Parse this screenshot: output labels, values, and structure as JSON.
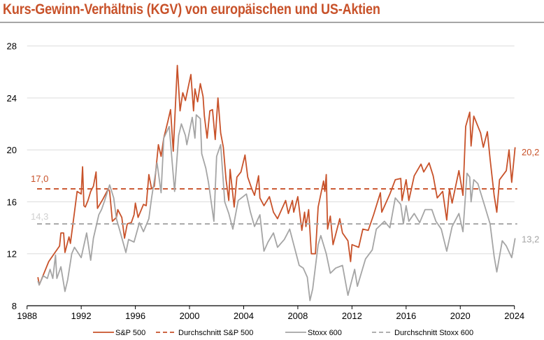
{
  "title": "Kurs-Gewinn-Verhältnis (KGV) von europäischen und US-Aktien",
  "chart_data": {
    "type": "line",
    "title": "Kurs-Gewinn-Verhältnis (KGV) von europäischen und US-Aktien",
    "xlabel": "",
    "ylabel": "",
    "xlim": [
      1988,
      2024
    ],
    "ylim": [
      8,
      28
    ],
    "x_ticks": [
      "1988",
      "1992",
      "1996",
      "2000",
      "2004",
      "2008",
      "2012",
      "2016",
      "2020",
      "2024"
    ],
    "y_ticks": [
      "8",
      "12",
      "16",
      "20",
      "24",
      "28"
    ],
    "grid": "horizontal",
    "legend_position": "bottom",
    "colors": {
      "sp500": "#c8522a",
      "stoxx": "#a5a5a5",
      "stoxx_avg_label": "#d0d0d0"
    },
    "series": [
      {
        "name": "S&P 500",
        "style": "solid",
        "color": "#c8522a",
        "points": [
          [
            1988.8,
            10.2
          ],
          [
            1988.9,
            9.6
          ],
          [
            1989.6,
            11.4
          ],
          [
            1990.0,
            12.0
          ],
          [
            1990.4,
            12.6
          ],
          [
            1990.5,
            13.6
          ],
          [
            1990.7,
            13.6
          ],
          [
            1990.8,
            12.1
          ],
          [
            1991.1,
            13.3
          ],
          [
            1991.2,
            12.8
          ],
          [
            1991.5,
            15.2
          ],
          [
            1991.7,
            16.8
          ],
          [
            1992.0,
            16.6
          ],
          [
            1992.1,
            18.7
          ],
          [
            1992.2,
            15.7
          ],
          [
            1992.3,
            15.6
          ],
          [
            1992.5,
            16.1
          ],
          [
            1992.7,
            16.8
          ],
          [
            1992.9,
            17.2
          ],
          [
            1993.1,
            18.3
          ],
          [
            1993.2,
            15.5
          ],
          [
            1993.6,
            16.2
          ],
          [
            1994.0,
            17.0
          ],
          [
            1994.1,
            16.8
          ],
          [
            1994.3,
            14.5
          ],
          [
            1994.6,
            14.8
          ],
          [
            1994.7,
            15.4
          ],
          [
            1995.0,
            14.8
          ],
          [
            1995.2,
            13.2
          ],
          [
            1995.4,
            14.3
          ],
          [
            1995.7,
            14.4
          ],
          [
            1995.9,
            15.0
          ],
          [
            1996.0,
            15.9
          ],
          [
            1996.2,
            14.8
          ],
          [
            1996.6,
            15.8
          ],
          [
            1996.8,
            15.7
          ],
          [
            1997.0,
            18.1
          ],
          [
            1997.2,
            17.0
          ],
          [
            1997.4,
            17.2
          ],
          [
            1997.7,
            20.4
          ],
          [
            1997.9,
            19.5
          ],
          [
            1998.1,
            20.9
          ],
          [
            1998.4,
            22.2
          ],
          [
            1998.6,
            23.1
          ],
          [
            1998.8,
            19.9
          ],
          [
            1999.1,
            26.5
          ],
          [
            1999.3,
            23.0
          ],
          [
            1999.5,
            24.4
          ],
          [
            1999.7,
            23.8
          ],
          [
            1999.9,
            24.8
          ],
          [
            2000.1,
            25.8
          ],
          [
            2000.3,
            23.0
          ],
          [
            2000.4,
            24.7
          ],
          [
            2000.6,
            23.7
          ],
          [
            2000.8,
            25.1
          ],
          [
            2001.0,
            24.1
          ],
          [
            2001.1,
            22.6
          ],
          [
            2001.3,
            20.9
          ],
          [
            2001.5,
            23.0
          ],
          [
            2001.7,
            23.1
          ],
          [
            2001.9,
            20.8
          ],
          [
            2002.1,
            24.0
          ],
          [
            2002.3,
            21.3
          ],
          [
            2002.5,
            20.2
          ],
          [
            2002.7,
            17.7
          ],
          [
            2002.9,
            16.1
          ],
          [
            2003.0,
            18.5
          ],
          [
            2003.3,
            15.6
          ],
          [
            2003.5,
            17.9
          ],
          [
            2003.8,
            18.3
          ],
          [
            2004.1,
            19.6
          ],
          [
            2004.3,
            17.9
          ],
          [
            2004.6,
            17.0
          ],
          [
            2004.8,
            16.5
          ],
          [
            2005.1,
            18.0
          ],
          [
            2005.2,
            16.3
          ],
          [
            2005.5,
            15.7
          ],
          [
            2005.9,
            16.4
          ],
          [
            2006.2,
            15.2
          ],
          [
            2006.5,
            14.7
          ],
          [
            2007.1,
            16.1
          ],
          [
            2007.3,
            15.1
          ],
          [
            2007.6,
            16.1
          ],
          [
            2007.7,
            15.2
          ],
          [
            2008.0,
            16.4
          ],
          [
            2008.3,
            13.8
          ],
          [
            2008.5,
            15.2
          ],
          [
            2008.6,
            14.1
          ],
          [
            2008.8,
            15.4
          ],
          [
            2009.0,
            12.0
          ],
          [
            2009.3,
            12.0
          ],
          [
            2009.5,
            15.6
          ],
          [
            2009.9,
            17.6
          ],
          [
            2010.0,
            16.8
          ],
          [
            2010.1,
            18.1
          ],
          [
            2010.2,
            13.9
          ],
          [
            2010.4,
            14.9
          ],
          [
            2010.6,
            12.7
          ],
          [
            2011.1,
            14.7
          ],
          [
            2011.3,
            13.6
          ],
          [
            2011.7,
            13.0
          ],
          [
            2011.9,
            11.4
          ],
          [
            2012.0,
            12.7
          ],
          [
            2012.5,
            12.5
          ],
          [
            2012.8,
            13.9
          ],
          [
            2013.2,
            13.8
          ],
          [
            2013.6,
            15.0
          ],
          [
            2014.1,
            16.7
          ],
          [
            2014.2,
            15.2
          ],
          [
            2014.8,
            16.6
          ],
          [
            2015.2,
            17.7
          ],
          [
            2015.6,
            17.8
          ],
          [
            2015.7,
            16.1
          ],
          [
            2016.0,
            17.7
          ],
          [
            2016.2,
            16.1
          ],
          [
            2016.6,
            18.0
          ],
          [
            2017.1,
            18.9
          ],
          [
            2017.3,
            18.3
          ],
          [
            2017.7,
            19.0
          ],
          [
            2018.0,
            18.0
          ],
          [
            2018.3,
            16.3
          ],
          [
            2018.7,
            16.8
          ],
          [
            2019.0,
            14.6
          ],
          [
            2019.2,
            17.0
          ],
          [
            2019.4,
            15.9
          ],
          [
            2019.9,
            18.4
          ],
          [
            2020.2,
            16.5
          ],
          [
            2020.4,
            21.8
          ],
          [
            2020.7,
            22.9
          ],
          [
            2020.8,
            20.3
          ],
          [
            2021.0,
            22.6
          ],
          [
            2021.5,
            21.3
          ],
          [
            2021.7,
            20.2
          ],
          [
            2022.0,
            21.4
          ],
          [
            2022.2,
            19.3
          ],
          [
            2022.5,
            16.5
          ],
          [
            2022.7,
            15.2
          ],
          [
            2022.9,
            17.7
          ],
          [
            2023.4,
            18.4
          ],
          [
            2023.6,
            20.0
          ],
          [
            2023.8,
            17.5
          ],
          [
            2024.05,
            20.2
          ]
        ]
      },
      {
        "name": "Durchschnitt S&P 500",
        "style": "dashed",
        "color": "#c8522a",
        "value": 17.0,
        "label": "17,0"
      },
      {
        "name": "Stoxx 600",
        "style": "solid",
        "color": "#a5a5a5",
        "points": [
          [
            1988.8,
            9.9
          ],
          [
            1988.9,
            9.6
          ],
          [
            1989.2,
            10.3
          ],
          [
            1989.5,
            10.1
          ],
          [
            1989.7,
            10.8
          ],
          [
            1989.9,
            10.1
          ],
          [
            1990.1,
            11.9
          ],
          [
            1990.2,
            10.1
          ],
          [
            1990.5,
            11.0
          ],
          [
            1990.8,
            9.1
          ],
          [
            1991.0,
            10.0
          ],
          [
            1991.3,
            12.0
          ],
          [
            1991.5,
            12.5
          ],
          [
            1992.0,
            11.7
          ],
          [
            1992.4,
            13.6
          ],
          [
            1992.7,
            11.5
          ],
          [
            1992.9,
            13.2
          ],
          [
            1993.3,
            15.0
          ],
          [
            1993.5,
            15.4
          ],
          [
            1993.7,
            16.0
          ],
          [
            1994.1,
            17.3
          ],
          [
            1994.4,
            16.3
          ],
          [
            1994.6,
            14.7
          ],
          [
            1994.9,
            13.6
          ],
          [
            1995.3,
            12.1
          ],
          [
            1995.5,
            13.1
          ],
          [
            1995.9,
            12.9
          ],
          [
            1996.3,
            14.4
          ],
          [
            1996.6,
            13.7
          ],
          [
            1997.0,
            14.7
          ],
          [
            1997.2,
            16.3
          ],
          [
            1997.6,
            19.0
          ],
          [
            1997.9,
            16.7
          ],
          [
            1998.1,
            20.9
          ],
          [
            1998.5,
            21.8
          ],
          [
            1998.9,
            16.8
          ],
          [
            1999.2,
            21.1
          ],
          [
            1999.4,
            22.0
          ],
          [
            1999.7,
            21.1
          ],
          [
            1999.8,
            20.4
          ],
          [
            2000.2,
            22.5
          ],
          [
            2000.4,
            20.9
          ],
          [
            2000.5,
            22.7
          ],
          [
            2000.8,
            22.4
          ],
          [
            2000.9,
            19.7
          ],
          [
            2001.2,
            18.6
          ],
          [
            2001.4,
            17.5
          ],
          [
            2001.8,
            14.5
          ],
          [
            2002.0,
            19.5
          ],
          [
            2002.3,
            20.4
          ],
          [
            2002.6,
            16.0
          ],
          [
            2002.9,
            15.1
          ],
          [
            2003.2,
            13.9
          ],
          [
            2003.6,
            16.1
          ],
          [
            2004.2,
            16.6
          ],
          [
            2004.5,
            15.2
          ],
          [
            2004.8,
            14.1
          ],
          [
            2005.2,
            15.0
          ],
          [
            2005.5,
            12.2
          ],
          [
            2005.8,
            12.9
          ],
          [
            2006.2,
            13.6
          ],
          [
            2006.5,
            12.5
          ],
          [
            2007.0,
            13.1
          ],
          [
            2007.4,
            13.9
          ],
          [
            2007.7,
            12.7
          ],
          [
            2008.1,
            11.1
          ],
          [
            2008.4,
            10.9
          ],
          [
            2008.7,
            10.2
          ],
          [
            2008.9,
            8.4
          ],
          [
            2009.1,
            9.3
          ],
          [
            2009.5,
            12.7
          ],
          [
            2009.7,
            13.4
          ],
          [
            2010.1,
            12.0
          ],
          [
            2010.4,
            10.5
          ],
          [
            2010.8,
            10.9
          ],
          [
            2011.3,
            11.1
          ],
          [
            2011.7,
            8.8
          ],
          [
            2012.2,
            10.8
          ],
          [
            2012.4,
            9.5
          ],
          [
            2013.0,
            11.6
          ],
          [
            2013.5,
            12.3
          ],
          [
            2013.8,
            13.9
          ],
          [
            2014.4,
            14.5
          ],
          [
            2014.8,
            14.0
          ],
          [
            2015.2,
            16.3
          ],
          [
            2015.6,
            15.8
          ],
          [
            2015.8,
            14.3
          ],
          [
            2016.0,
            15.7
          ],
          [
            2016.2,
            14.5
          ],
          [
            2016.6,
            15.1
          ],
          [
            2017.0,
            14.4
          ],
          [
            2017.4,
            15.4
          ],
          [
            2017.9,
            15.4
          ],
          [
            2018.2,
            14.5
          ],
          [
            2018.6,
            13.9
          ],
          [
            2019.0,
            12.2
          ],
          [
            2019.4,
            14.1
          ],
          [
            2019.9,
            15.1
          ],
          [
            2020.2,
            13.7
          ],
          [
            2020.5,
            18.2
          ],
          [
            2020.7,
            17.9
          ],
          [
            2020.8,
            16.0
          ],
          [
            2021.0,
            17.7
          ],
          [
            2021.3,
            17.4
          ],
          [
            2021.8,
            15.7
          ],
          [
            2022.2,
            14.3
          ],
          [
            2022.5,
            11.8
          ],
          [
            2022.7,
            10.6
          ],
          [
            2023.1,
            13.0
          ],
          [
            2023.4,
            12.6
          ],
          [
            2023.8,
            11.7
          ],
          [
            2024.05,
            13.2
          ]
        ]
      },
      {
        "name": "Durchschnitt Stoxx 600",
        "style": "dashed",
        "color": "#a5a5a5",
        "value": 14.3,
        "label": "14,3"
      }
    ],
    "end_labels": {
      "sp500": "20,2",
      "stoxx": "13,2"
    }
  }
}
